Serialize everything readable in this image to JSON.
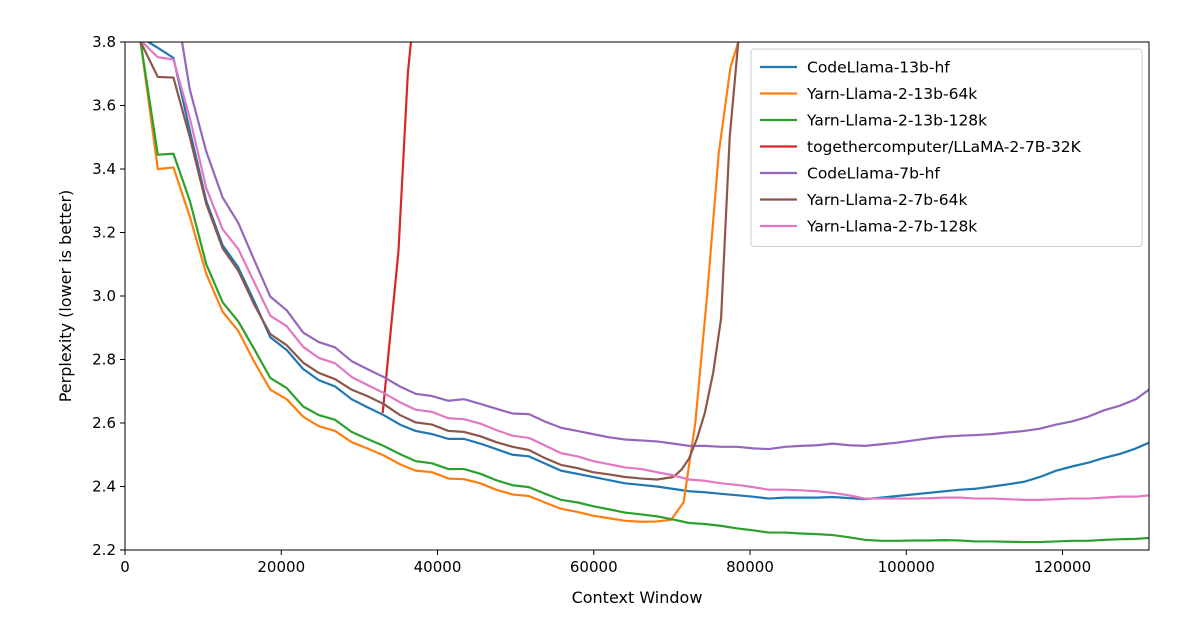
{
  "chart_data": {
    "type": "line",
    "title": "",
    "xlabel": "Context Window",
    "ylabel": "Perplexity (lower is better)",
    "xlim": [
      0,
      131072
    ],
    "ylim": [
      2.2,
      3.8
    ],
    "xticks": [
      0,
      20000,
      40000,
      60000,
      80000,
      100000,
      120000
    ],
    "yticks": [
      2.2,
      2.4,
      2.6,
      2.8,
      3.0,
      3.2,
      3.4,
      3.6,
      3.8
    ],
    "xtick_labels": [
      "0",
      "20000",
      "40000",
      "60000",
      "80000",
      "100000",
      "120000"
    ],
    "ytick_labels": [
      "2.2",
      "2.4",
      "2.6",
      "2.8",
      "3.0",
      "3.2",
      "3.4",
      "3.6",
      "3.8"
    ],
    "grid": false,
    "legend_position": "top-right",
    "series": [
      {
        "name": "CodeLlama-13b-hf",
        "color": "#1f77b4",
        "x": [
          3000,
          4300,
          6200,
          8300,
          10400,
          12500,
          14500,
          16600,
          18600,
          20700,
          22800,
          24800,
          26900,
          29000,
          31000,
          33100,
          35200,
          37200,
          39300,
          41400,
          43400,
          45500,
          49600,
          51700,
          55800,
          59900,
          64000,
          68100,
          72200,
          74200,
          76300,
          80400,
          82400,
          84500,
          88600,
          90600,
          94700,
          98800,
          102900,
          106900,
          108900,
          111000,
          113000,
          115100,
          117100,
          119200,
          121200,
          123300,
          125300,
          127400,
          129400,
          131072
        ],
        "y": [
          3.8,
          3.78,
          3.75,
          3.52,
          3.3,
          3.16,
          3.09,
          2.98,
          2.87,
          2.83,
          2.77,
          2.735,
          2.715,
          2.675,
          2.65,
          2.625,
          2.595,
          2.575,
          2.565,
          2.55,
          2.55,
          2.535,
          2.5,
          2.495,
          2.45,
          2.43,
          2.41,
          2.4,
          2.385,
          2.382,
          2.377,
          2.368,
          2.362,
          2.365,
          2.365,
          2.367,
          2.36,
          2.37,
          2.38,
          2.39,
          2.393,
          2.4,
          2.407,
          2.415,
          2.43,
          2.45,
          2.463,
          2.475,
          2.49,
          2.503,
          2.52,
          2.538
        ]
      },
      {
        "name": "Yarn-Llama-2-13b-64k",
        "color": "#ff7f0e",
        "x": [
          2000,
          4200,
          6200,
          8300,
          10400,
          12500,
          14500,
          16600,
          18600,
          20700,
          22800,
          24800,
          26900,
          29000,
          31000,
          33100,
          35200,
          37200,
          39300,
          41400,
          43400,
          45500,
          47500,
          49600,
          51700,
          53700,
          55800,
          57900,
          59900,
          62000,
          64000,
          66100,
          68100,
          69900,
          71500,
          73000,
          74500,
          76000,
          77500,
          78500
        ],
        "y": [
          3.8,
          3.4,
          3.405,
          3.25,
          3.07,
          2.95,
          2.89,
          2.79,
          2.705,
          2.675,
          2.62,
          2.59,
          2.575,
          2.54,
          2.52,
          2.498,
          2.47,
          2.45,
          2.445,
          2.425,
          2.423,
          2.41,
          2.39,
          2.375,
          2.37,
          2.35,
          2.33,
          2.32,
          2.308,
          2.3,
          2.292,
          2.289,
          2.29,
          2.295,
          2.35,
          2.6,
          3.0,
          3.45,
          3.72,
          3.8
        ]
      },
      {
        "name": "Yarn-Llama-2-13b-128k",
        "color": "#2ca02c",
        "x": [
          2000,
          4200,
          6200,
          8300,
          10400,
          12500,
          14500,
          16600,
          18600,
          20700,
          22800,
          24800,
          26900,
          29000,
          31000,
          33100,
          35200,
          37200,
          39300,
          41400,
          43400,
          45500,
          47500,
          49600,
          51700,
          53700,
          55800,
          57900,
          59900,
          62000,
          64000,
          66100,
          68100,
          70200,
          72200,
          74200,
          76300,
          78400,
          80400,
          82400,
          84500,
          86500,
          88600,
          90600,
          92700,
          94700,
          96800,
          98800,
          100900,
          102900,
          104900,
          106900,
          108900,
          111000,
          113000,
          115100,
          117100,
          119200,
          121200,
          123300,
          125300,
          127400,
          129400,
          131072
        ],
        "y": [
          3.8,
          3.445,
          3.448,
          3.3,
          3.1,
          2.98,
          2.92,
          2.83,
          2.742,
          2.71,
          2.652,
          2.625,
          2.61,
          2.572,
          2.55,
          2.528,
          2.502,
          2.48,
          2.473,
          2.455,
          2.455,
          2.44,
          2.42,
          2.404,
          2.398,
          2.378,
          2.358,
          2.35,
          2.338,
          2.328,
          2.318,
          2.312,
          2.306,
          2.296,
          2.285,
          2.282,
          2.276,
          2.268,
          2.262,
          2.255,
          2.255,
          2.252,
          2.25,
          2.247,
          2.24,
          2.232,
          2.229,
          2.229,
          2.23,
          2.23,
          2.231,
          2.23,
          2.227,
          2.227,
          2.226,
          2.225,
          2.225,
          2.227,
          2.229,
          2.229,
          2.232,
          2.234,
          2.235,
          2.238
        ]
      },
      {
        "name": "togethercomputer/LLaMA-2-7B-32K",
        "color": "#d62728",
        "x": [
          33000,
          35000,
          36200,
          36600
        ],
        "y": [
          2.635,
          3.14,
          3.7,
          3.8
        ]
      },
      {
        "name": "CodeLlama-7b-hf",
        "color": "#9467bd",
        "x": [
          7300,
          8300,
          10400,
          12500,
          14500,
          16600,
          18600,
          20700,
          22800,
          24800,
          26900,
          29000,
          31000,
          33100,
          35200,
          37200,
          39300,
          41400,
          43400,
          45500,
          47500,
          49600,
          51700,
          53700,
          55800,
          57900,
          59900,
          62000,
          64000,
          66100,
          68100,
          70200,
          72200,
          74200,
          76300,
          78400,
          80400,
          82400,
          84500,
          86500,
          88600,
          90600,
          92700,
          94700,
          96800,
          98800,
          100900,
          102900,
          104900,
          106900,
          108900,
          111000,
          113000,
          115100,
          117100,
          119200,
          121200,
          123300,
          125300,
          127400,
          129400,
          131072
        ],
        "y": [
          3.8,
          3.65,
          3.455,
          3.31,
          3.23,
          3.11,
          2.998,
          2.955,
          2.885,
          2.855,
          2.838,
          2.795,
          2.77,
          2.745,
          2.715,
          2.692,
          2.685,
          2.67,
          2.675,
          2.66,
          2.645,
          2.63,
          2.628,
          2.605,
          2.585,
          2.575,
          2.565,
          2.555,
          2.548,
          2.545,
          2.542,
          2.535,
          2.528,
          2.528,
          2.525,
          2.525,
          2.52,
          2.518,
          2.525,
          2.528,
          2.53,
          2.535,
          2.53,
          2.528,
          2.533,
          2.538,
          2.545,
          2.552,
          2.557,
          2.56,
          2.562,
          2.565,
          2.57,
          2.575,
          2.582,
          2.595,
          2.605,
          2.62,
          2.64,
          2.655,
          2.675,
          2.705
        ]
      },
      {
        "name": "Yarn-Llama-2-7b-64k",
        "color": "#8c564b",
        "x": [
          2000,
          4200,
          6200,
          8300,
          10400,
          12500,
          14500,
          16600,
          18600,
          20700,
          22800,
          24800,
          26900,
          29000,
          31000,
          33100,
          35200,
          37200,
          39300,
          41400,
          43400,
          45500,
          47500,
          49600,
          51700,
          53700,
          55800,
          57900,
          59900,
          62000,
          64000,
          66100,
          68100,
          70200,
          71300,
          72200,
          73200,
          74200,
          75300,
          76300,
          77400,
          78500
        ],
        "y": [
          3.8,
          3.69,
          3.688,
          3.5,
          3.29,
          3.15,
          3.08,
          2.97,
          2.88,
          2.845,
          2.79,
          2.758,
          2.738,
          2.705,
          2.685,
          2.66,
          2.625,
          2.602,
          2.595,
          2.575,
          2.572,
          2.558,
          2.54,
          2.525,
          2.515,
          2.49,
          2.468,
          2.458,
          2.445,
          2.438,
          2.43,
          2.425,
          2.422,
          2.43,
          2.455,
          2.488,
          2.55,
          2.63,
          2.76,
          2.93,
          3.5,
          3.8
        ]
      },
      {
        "name": "Yarn-Llama-2-7b-128k",
        "color": "#e377c2",
        "x": [
          2200,
          4200,
          6200,
          8300,
          10400,
          12500,
          14500,
          16600,
          18600,
          20700,
          22800,
          24800,
          26900,
          29000,
          31000,
          33100,
          35200,
          37200,
          39300,
          41400,
          43400,
          45500,
          47500,
          49600,
          51700,
          53700,
          55800,
          57900,
          59900,
          62000,
          64000,
          66100,
          68100,
          70200,
          72200,
          74200,
          76300,
          78400,
          80400,
          82400,
          84500,
          86500,
          88600,
          90600,
          92700,
          94700,
          96800,
          98800,
          100900,
          102900,
          104900,
          106900,
          108900,
          111000,
          113000,
          115100,
          117100,
          119200,
          121200,
          123300,
          125300,
          127400,
          129400,
          131072
        ],
        "y": [
          3.8,
          3.752,
          3.745,
          3.56,
          3.34,
          3.21,
          3.148,
          3.04,
          2.938,
          2.905,
          2.84,
          2.805,
          2.788,
          2.745,
          2.72,
          2.695,
          2.665,
          2.642,
          2.635,
          2.615,
          2.612,
          2.598,
          2.578,
          2.56,
          2.553,
          2.53,
          2.505,
          2.495,
          2.48,
          2.47,
          2.46,
          2.455,
          2.445,
          2.435,
          2.422,
          2.418,
          2.41,
          2.405,
          2.398,
          2.39,
          2.39,
          2.388,
          2.385,
          2.38,
          2.372,
          2.362,
          2.362,
          2.362,
          2.362,
          2.363,
          2.365,
          2.365,
          2.362,
          2.362,
          2.36,
          2.358,
          2.358,
          2.36,
          2.362,
          2.362,
          2.365,
          2.368,
          2.368,
          2.372
        ]
      }
    ]
  }
}
